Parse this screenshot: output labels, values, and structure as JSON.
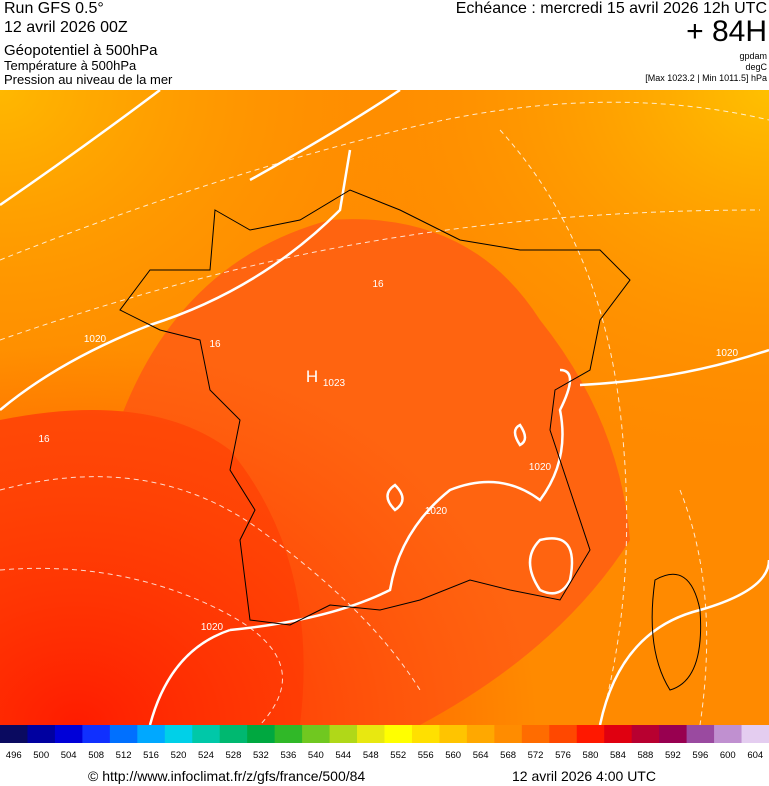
{
  "header": {
    "run": "Run GFS 0.5°",
    "run_date": "12 avril 2026 00Z",
    "param1": "Géopotentiel à 500hPa",
    "param2": "Température à 500hPa",
    "param3": "Pression au niveau de la mer",
    "valid": "Echéance : mercredi 15 avril 2026 12h UTC",
    "lead": "+ 84H",
    "unit1": "gpdam",
    "unit2": "degC",
    "range": "[Max 1023.2 | Min 1011.5] hPa"
  },
  "map": {
    "labels": [
      "1020",
      "1020",
      "1020",
      "1020",
      "1020",
      "H",
      "1023",
      "16",
      "16",
      "16"
    ]
  },
  "colorbar": {
    "labels": [
      496,
      500,
      504,
      508,
      512,
      516,
      520,
      524,
      528,
      532,
      536,
      540,
      544,
      548,
      552,
      556,
      560,
      564,
      568,
      572,
      576,
      580,
      584,
      588,
      592,
      596,
      600,
      604
    ],
    "colors": [
      "#0a0a60",
      "#0000a0",
      "#0000d8",
      "#1030ff",
      "#0070ff",
      "#00a8ff",
      "#00d0e8",
      "#00c8a8",
      "#00b870",
      "#00a840",
      "#30b828",
      "#70c820",
      "#b0d818",
      "#e8e810",
      "#ffff00",
      "#ffe000",
      "#ffc400",
      "#ffa800",
      "#ff8c00",
      "#ff6c00",
      "#ff4800",
      "#ff1800",
      "#e00010",
      "#b80030",
      "#980050",
      "#9a4aa0",
      "#c090d0",
      "#e4cdf0"
    ]
  },
  "footer": {
    "source": "© http://www.infoclimat.fr/z/gfs/france/500/84",
    "date": "12 avril 2026  4:00 UTC"
  }
}
